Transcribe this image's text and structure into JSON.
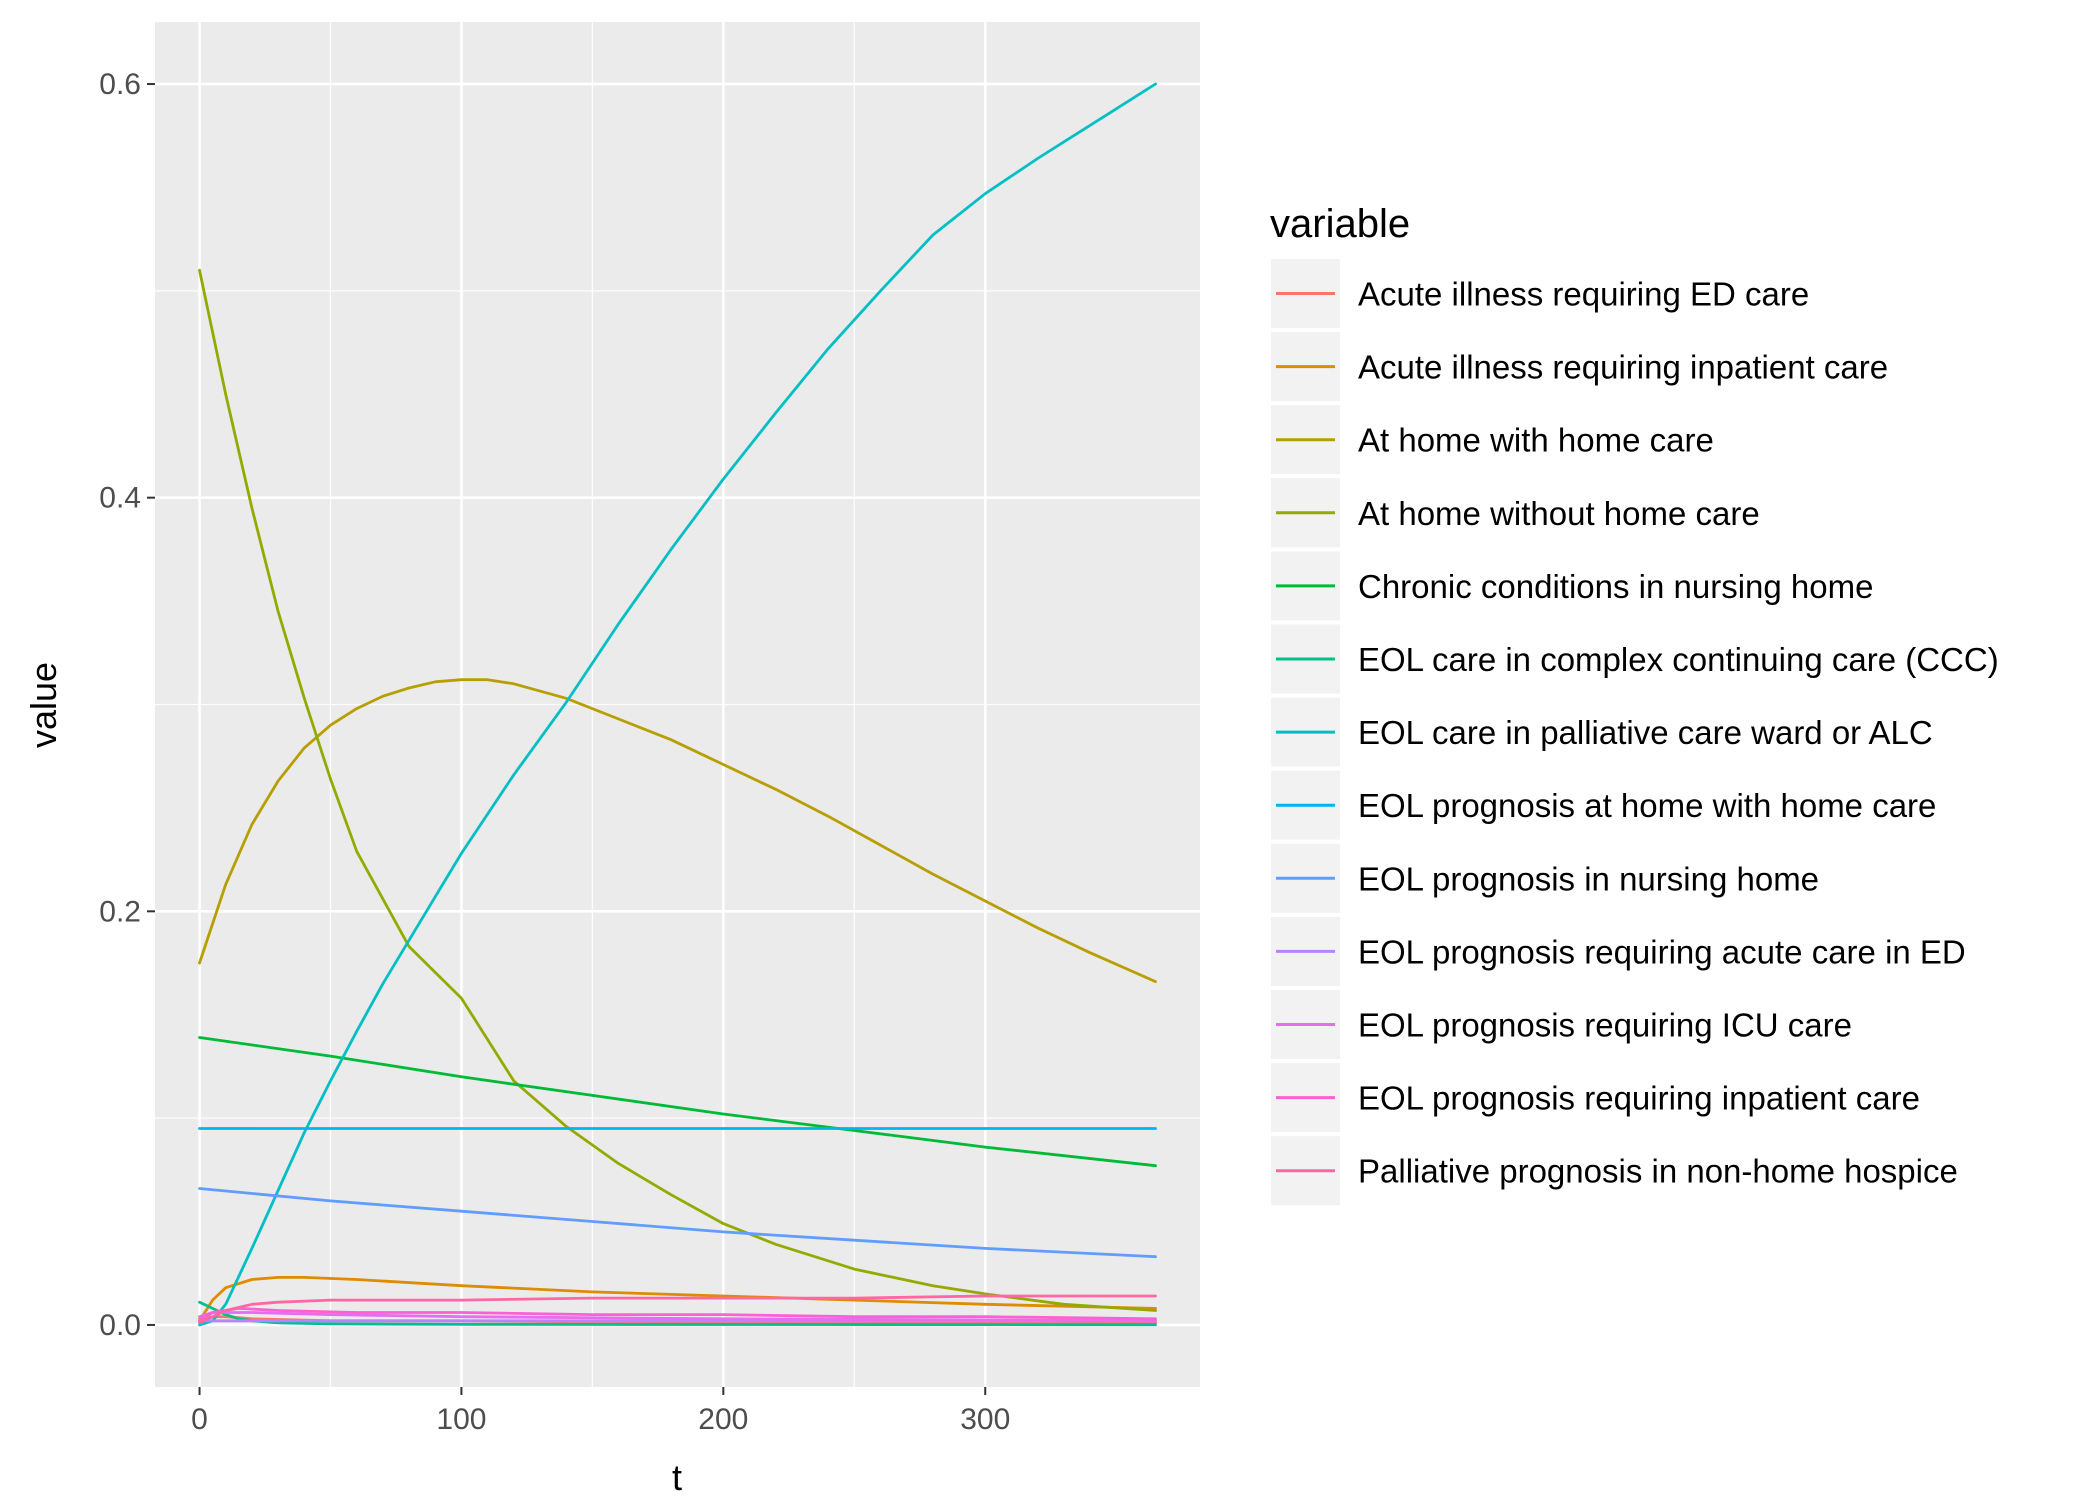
{
  "chart_data": {
    "type": "line",
    "xlabel": "t",
    "ylabel": "value",
    "xlim": [
      -17,
      382
    ],
    "ylim": [
      -0.03,
      0.63
    ],
    "x_ticks": [
      0,
      100,
      200,
      300
    ],
    "y_ticks": [
      0.0,
      0.2,
      0.4,
      0.6
    ],
    "x_tick_labels": [
      "0",
      "100",
      "200",
      "300"
    ],
    "y_tick_labels": [
      "0.0",
      "0.2",
      "0.4",
      "0.6"
    ],
    "grid": true,
    "panel_background": "#EBEBEB",
    "legend": {
      "title": "variable",
      "position": "right"
    },
    "series": [
      {
        "name": "Acute illness requiring ED care",
        "color": "#F8766D",
        "x": [
          0,
          5,
          10,
          20,
          50,
          100,
          200,
          300,
          365
        ],
        "y": [
          0.003,
          0.004,
          0.004,
          0.003,
          0.002,
          0.002,
          0.001,
          0.001,
          0.001
        ]
      },
      {
        "name": "Acute illness requiring inpatient care",
        "color": "#DE8C00",
        "x": [
          0,
          5,
          10,
          20,
          30,
          40,
          60,
          100,
          150,
          200,
          250,
          300,
          365
        ],
        "y": [
          0.002,
          0.012,
          0.018,
          0.022,
          0.023,
          0.023,
          0.022,
          0.019,
          0.016,
          0.014,
          0.012,
          0.01,
          0.008
        ]
      },
      {
        "name": "At home with home care",
        "color": "#B79F00",
        "x": [
          0,
          10,
          20,
          30,
          40,
          50,
          60,
          70,
          80,
          90,
          100,
          110,
          120,
          140,
          160,
          180,
          200,
          220,
          240,
          260,
          280,
          300,
          320,
          340,
          365
        ],
        "y": [
          0.175,
          0.213,
          0.242,
          0.263,
          0.279,
          0.29,
          0.298,
          0.304,
          0.308,
          0.311,
          0.312,
          0.312,
          0.31,
          0.303,
          0.293,
          0.283,
          0.271,
          0.259,
          0.246,
          0.232,
          0.218,
          0.205,
          0.192,
          0.18,
          0.166
        ]
      },
      {
        "name": "At home without home care",
        "color": "#93AA00",
        "x": [
          0,
          10,
          20,
          30,
          40,
          50,
          60,
          80,
          100,
          120,
          140,
          160,
          180,
          200,
          220,
          250,
          280,
          300,
          330,
          365
        ],
        "y": [
          0.51,
          0.45,
          0.395,
          0.345,
          0.303,
          0.264,
          0.229,
          0.183,
          0.158,
          0.118,
          0.096,
          0.078,
          0.063,
          0.049,
          0.039,
          0.027,
          0.019,
          0.015,
          0.01,
          0.007
        ]
      },
      {
        "name": "Chronic conditions in nursing home",
        "color": "#00BA38",
        "x": [
          0,
          50,
          100,
          150,
          200,
          250,
          300,
          365
        ],
        "y": [
          0.139,
          0.13,
          0.12,
          0.111,
          0.102,
          0.094,
          0.086,
          0.077
        ]
      },
      {
        "name": "EOL care in complex continuing care (CCC)",
        "color": "#00C08B",
        "x": [
          0,
          5,
          10,
          15,
          20,
          30,
          50,
          100,
          200,
          365
        ],
        "y": [
          0.011,
          0.008,
          0.005,
          0.003,
          0.002,
          0.001,
          0.0005,
          0.0003,
          0.0002,
          0.0001
        ]
      },
      {
        "name": "EOL care in palliative care ward or ALC",
        "color": "#00BFC4",
        "x": [
          0,
          5,
          10,
          20,
          30,
          40,
          50,
          60,
          70,
          80,
          90,
          100,
          120,
          140,
          160,
          180,
          200,
          220,
          240,
          260,
          280,
          300,
          320,
          340,
          365
        ],
        "y": [
          0.0,
          0.002,
          0.01,
          0.037,
          0.065,
          0.093,
          0.118,
          0.142,
          0.165,
          0.186,
          0.207,
          0.228,
          0.266,
          0.301,
          0.339,
          0.375,
          0.409,
          0.441,
          0.472,
          0.5,
          0.527,
          0.547,
          0.564,
          0.58,
          0.6
        ]
      },
      {
        "name": "EOL prognosis at home with home care",
        "color": "#00B4F0",
        "x": [
          0,
          365
        ],
        "y": [
          0.095,
          0.095
        ]
      },
      {
        "name": "EOL prognosis in nursing home",
        "color": "#619CFF",
        "x": [
          0,
          50,
          100,
          150,
          200,
          250,
          300,
          365
        ],
        "y": [
          0.066,
          0.06,
          0.055,
          0.05,
          0.045,
          0.041,
          0.037,
          0.033
        ]
      },
      {
        "name": "EOL prognosis requiring acute care in ED",
        "color": "#B983FF",
        "x": [
          0,
          365
        ],
        "y": [
          0.002,
          0.002
        ]
      },
      {
        "name": "EOL prognosis requiring ICU care",
        "color": "#E76BF3",
        "x": [
          0,
          5,
          20,
          50,
          100,
          200,
          365
        ],
        "y": [
          0.004,
          0.006,
          0.006,
          0.005,
          0.004,
          0.003,
          0.002
        ]
      },
      {
        "name": "EOL prognosis requiring inpatient care",
        "color": "#FD61D1",
        "x": [
          0,
          5,
          15,
          30,
          60,
          100,
          150,
          200,
          250,
          300,
          365
        ],
        "y": [
          0.002,
          0.006,
          0.008,
          0.007,
          0.006,
          0.006,
          0.005,
          0.005,
          0.004,
          0.004,
          0.003
        ]
      },
      {
        "name": "Palliative prognosis in non-home hospice",
        "color": "#FF67A4",
        "x": [
          0,
          5,
          10,
          20,
          30,
          50,
          100,
          150,
          200,
          250,
          300,
          365
        ],
        "y": [
          0.001,
          0.004,
          0.007,
          0.01,
          0.011,
          0.012,
          0.012,
          0.013,
          0.013,
          0.013,
          0.014,
          0.014
        ]
      }
    ]
  }
}
